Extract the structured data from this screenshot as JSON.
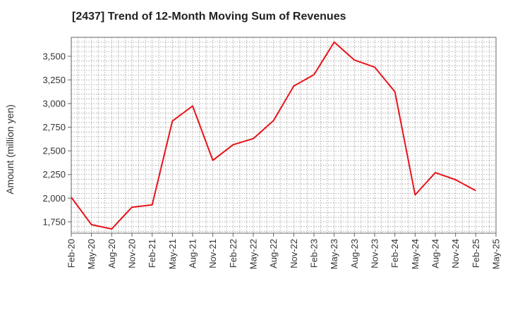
{
  "chart_data": {
    "type": "line",
    "title": "[2437]  Trend of 12-Month Moving Sum of Revenues",
    "xlabel": "",
    "ylabel": "Amount (million yen)",
    "ylim": [
      1630,
      3700
    ],
    "yticks": [
      1750,
      2000,
      2250,
      2500,
      2750,
      3000,
      3250,
      3500
    ],
    "ytick_labels": [
      "1,750",
      "2,000",
      "2,250",
      "2,500",
      "2,750",
      "3,000",
      "3,250",
      "3,500"
    ],
    "categories": [
      "Feb-20",
      "May-20",
      "Aug-20",
      "Nov-20",
      "Feb-21",
      "May-21",
      "Aug-21",
      "Nov-21",
      "Feb-22",
      "May-22",
      "Aug-22",
      "Nov-22",
      "Feb-23",
      "May-23",
      "Aug-23",
      "Nov-23",
      "Feb-24",
      "May-24",
      "Aug-24",
      "Nov-24",
      "Feb-25",
      "May-25"
    ],
    "series": [
      {
        "color": "#e8141b",
        "values": [
          2010,
          1720,
          1675,
          1905,
          1930,
          2815,
          2975,
          2400,
          2565,
          2630,
          2820,
          3185,
          3305,
          3650,
          3460,
          3385,
          3125,
          2035,
          2270,
          2195,
          2080,
          null
        ]
      }
    ],
    "grid": true
  }
}
